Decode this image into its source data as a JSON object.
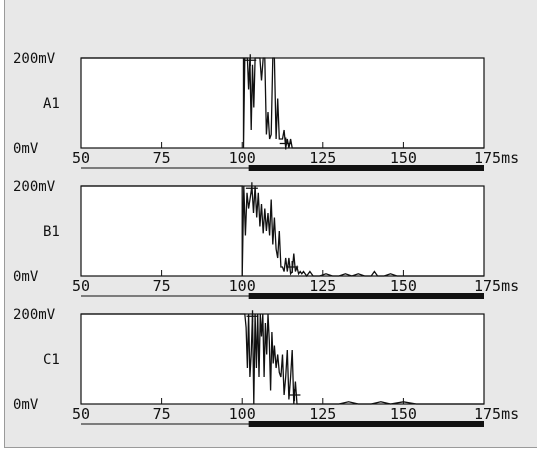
{
  "chart_data": {
    "type": "line",
    "x_unit": "ms",
    "xlim": [
      50,
      175
    ],
    "x_ticks": [
      "50",
      "75",
      "100",
      "125",
      "150",
      "175ms"
    ],
    "y_ticks": [
      "200mV",
      "0mV"
    ],
    "ylim": [
      0,
      200
    ],
    "panels": [
      {
        "name": "A1",
        "x": [
          100.4,
          100.8,
          101.2,
          101.6,
          102.0,
          102.4,
          102.8,
          103.2,
          103.6,
          104.0,
          104.5,
          105.0,
          105.5,
          106.0,
          106.5,
          107.0,
          107.5,
          108.0,
          108.5,
          109.0,
          109.5,
          110.0,
          110.5,
          111.0,
          111.5,
          112.0,
          112.5,
          113.0,
          113.5,
          114.0,
          114.5,
          115.0,
          115.5,
          116.0
        ],
        "y": [
          0,
          200,
          200,
          200,
          130,
          200,
          40,
          185,
          90,
          200,
          200,
          200,
          200,
          150,
          200,
          200,
          30,
          80,
          20,
          30,
          200,
          200,
          20,
          110,
          20,
          20,
          20,
          40,
          0,
          20,
          0,
          20,
          0,
          0
        ]
      },
      {
        "name": "B1",
        "x": [
          100.0,
          100.5,
          101.0,
          101.5,
          102.0,
          102.5,
          103.0,
          103.5,
          104.0,
          104.5,
          105.0,
          105.5,
          106.0,
          106.5,
          107.0,
          107.5,
          108.0,
          108.5,
          109.0,
          109.5,
          110.0,
          110.5,
          111.0,
          111.5,
          112.0,
          112.5,
          113.0,
          113.5,
          114.0,
          114.5,
          115.0,
          115.5,
          116.0,
          116.5,
          117.0,
          117.5,
          118.0,
          118.5,
          119.0,
          120.0,
          121.0,
          122.0,
          124.0,
          126.0,
          128.0,
          130.0,
          132.0,
          134.0,
          136.0,
          138.0,
          140.0,
          141.0,
          142.0,
          144.0,
          146.0,
          148.0,
          150.0,
          152.0,
          154.0,
          156.0
        ],
        "y": [
          0,
          200,
          90,
          185,
          150,
          175,
          200,
          140,
          200,
          130,
          185,
          110,
          160,
          95,
          150,
          100,
          140,
          90,
          170,
          70,
          130,
          60,
          40,
          100,
          20,
          20,
          10,
          40,
          10,
          40,
          5,
          10,
          50,
          10,
          20,
          5,
          10,
          5,
          10,
          0,
          10,
          0,
          0,
          5,
          0,
          0,
          5,
          0,
          5,
          0,
          0,
          10,
          0,
          0,
          5,
          0,
          0,
          0,
          0,
          0
        ]
      },
      {
        "name": "C1",
        "x": [
          100.8,
          101.2,
          101.6,
          102.0,
          102.4,
          102.8,
          103.2,
          103.6,
          104.0,
          104.4,
          104.8,
          105.2,
          105.6,
          106.0,
          106.4,
          106.8,
          107.2,
          107.6,
          108.0,
          108.4,
          108.8,
          109.2,
          109.6,
          110.0,
          110.5,
          111.0,
          111.5,
          112.0,
          112.5,
          113.0,
          113.5,
          114.0,
          114.5,
          115.0,
          115.5,
          116.0,
          116.5,
          117.0,
          117.5,
          118.0,
          120.0,
          122.0,
          125.0,
          130.0,
          133.0,
          136.0,
          140.0,
          143.0,
          146.0,
          150.0,
          154.0
        ],
        "y": [
          200,
          170,
          80,
          200,
          60,
          110,
          200,
          0,
          200,
          80,
          200,
          60,
          200,
          150,
          200,
          60,
          180,
          110,
          200,
          140,
          30,
          160,
          90,
          130,
          80,
          110,
          70,
          60,
          110,
          20,
          60,
          120,
          10,
          60,
          120,
          0,
          50,
          0,
          0,
          0,
          0,
          0,
          0,
          0,
          5,
          0,
          0,
          5,
          0,
          5,
          0
        ]
      }
    ],
    "bottom_bar_range_ms": [
      102,
      175
    ]
  }
}
